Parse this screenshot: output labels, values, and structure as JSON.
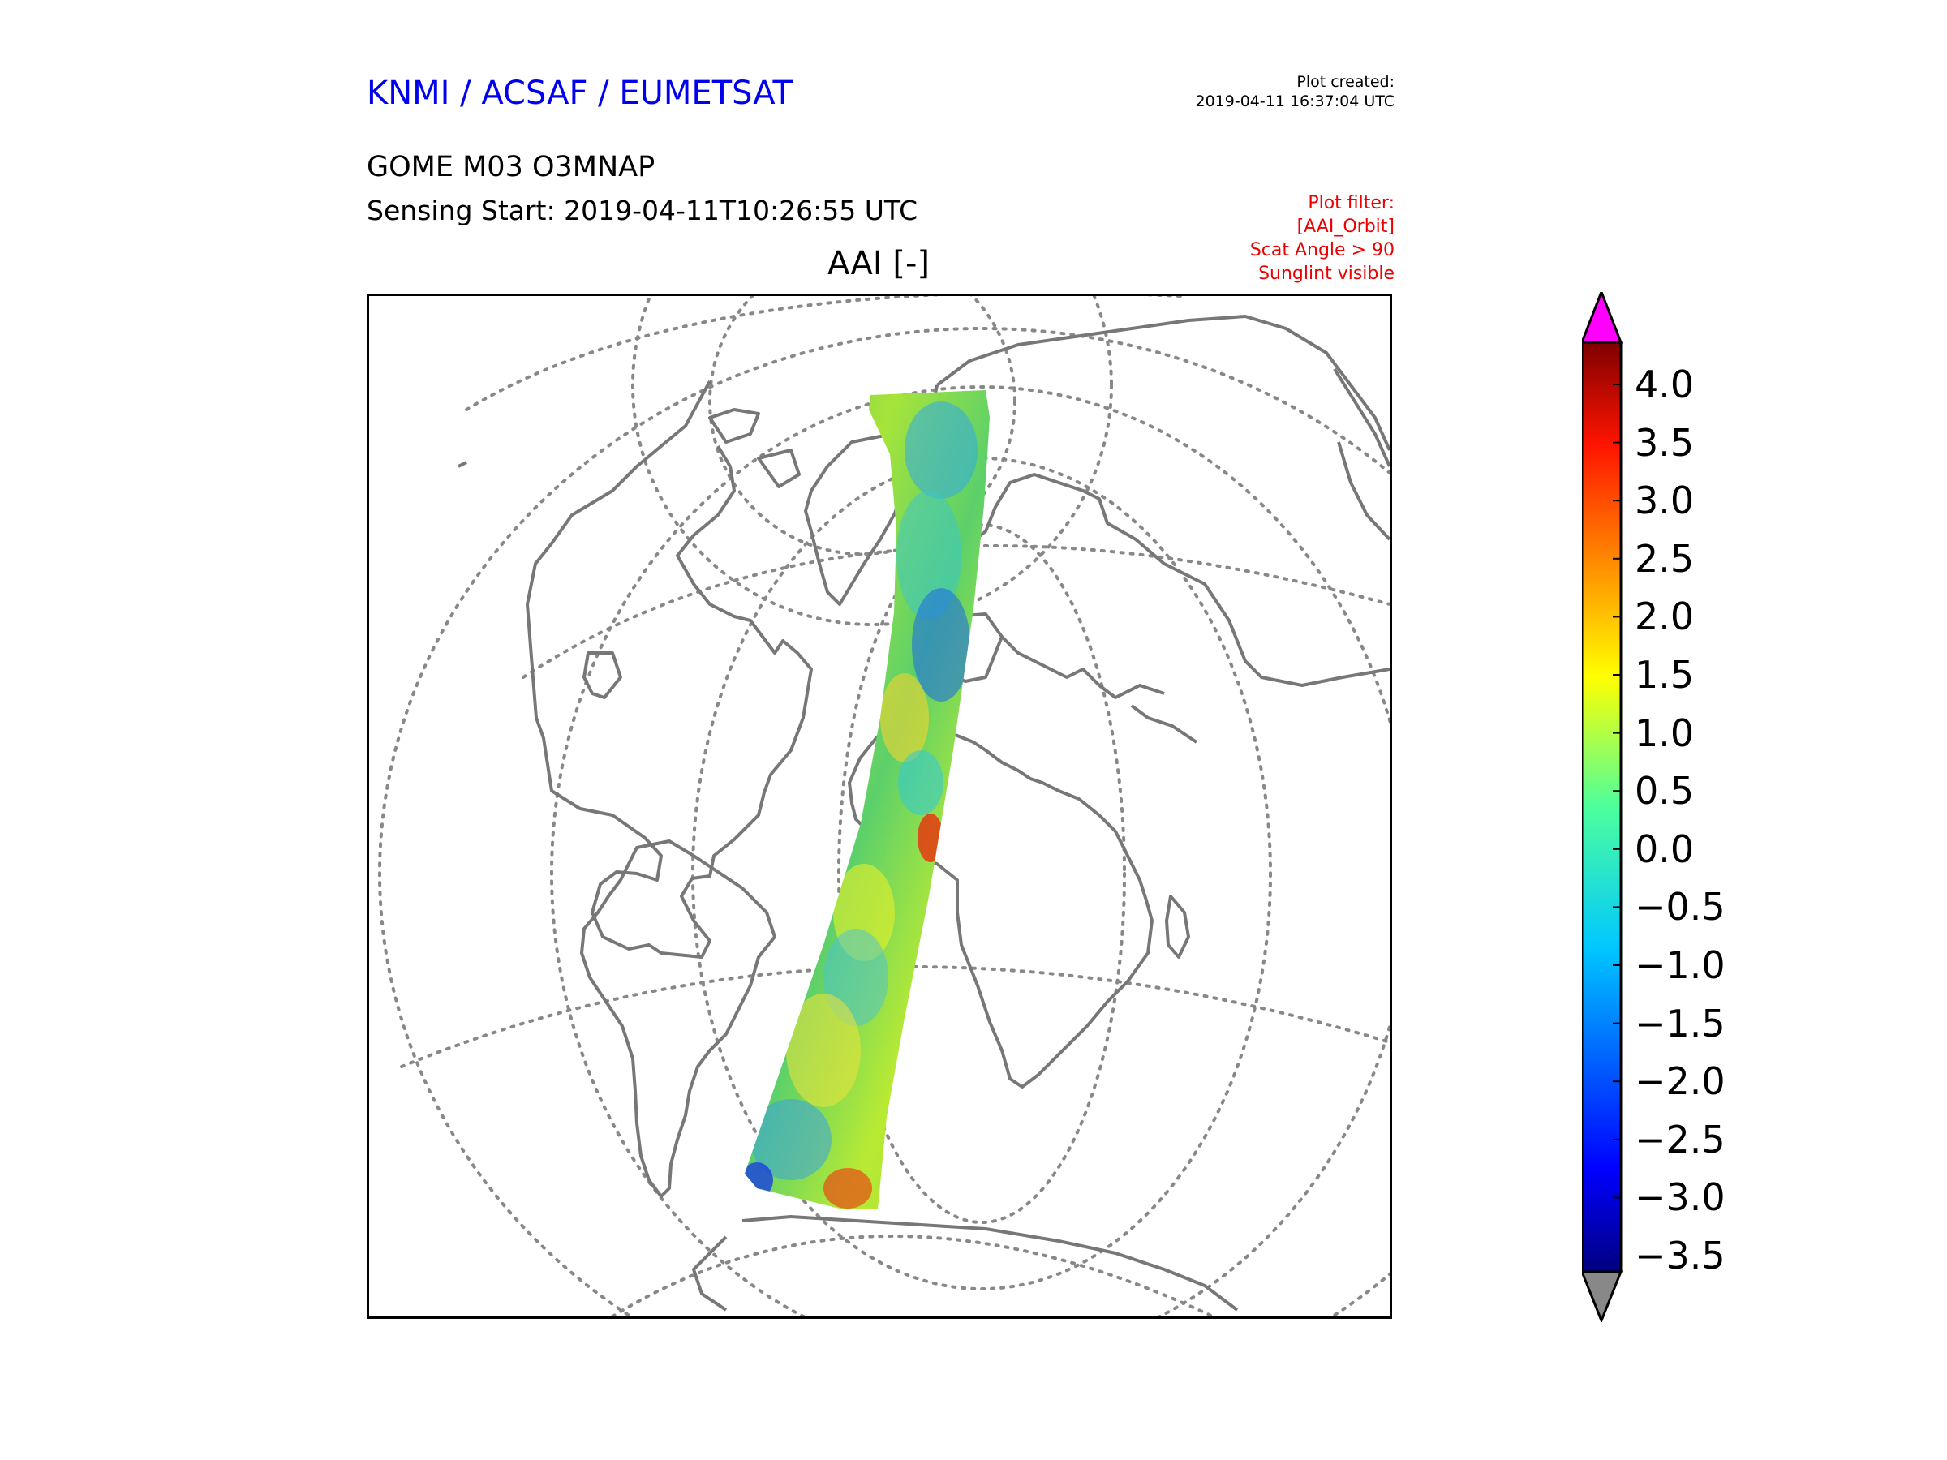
{
  "header": {
    "org": "KNMI / ACSAF / EUMETSAT",
    "plot_created_label": "Plot created:",
    "plot_created_time": "2019-04-11 16:37:04 UTC",
    "product": "GOME M03 O3MNAP",
    "sensing_start": "Sensing Start: 2019-04-11T10:26:55 UTC"
  },
  "filter": {
    "lines": [
      "Plot filter:",
      "[AAI_Orbit]",
      "Scat Angle > 90",
      "Sunglint visible"
    ],
    "color": "#ee0000"
  },
  "map": {
    "title": "AAI [-]",
    "projection": "orthographic",
    "coastline_color": "#777777",
    "graticule_style": "dotted"
  },
  "colorbar": {
    "min": -3.5,
    "max": 4.0,
    "ticks": [
      "4.0",
      "3.5",
      "3.0",
      "2.5",
      "2.0",
      "1.5",
      "1.0",
      "0.5",
      "0.0",
      "−0.5",
      "−1.0",
      "−1.5",
      "−2.0",
      "−2.5",
      "−3.0",
      "−3.5"
    ],
    "over_color": "#ff00ff",
    "under_color": "#888888",
    "colormap": "jet"
  }
}
